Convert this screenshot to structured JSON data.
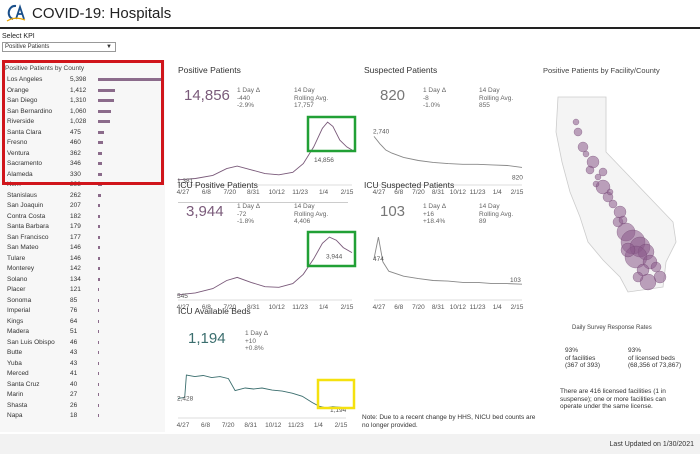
{
  "header": {
    "title": "COVID-19: Hospitals"
  },
  "kpi": {
    "label": "Select KPI",
    "selected": "Positive Patients"
  },
  "county_panel": {
    "title": "Positive Patients by County",
    "rows": [
      {
        "name": "Los Angeles",
        "value": "5,398",
        "num": 5398
      },
      {
        "name": "Orange",
        "value": "1,412",
        "num": 1412
      },
      {
        "name": "San Diego",
        "value": "1,310",
        "num": 1310
      },
      {
        "name": "San Bernardino",
        "value": "1,060",
        "num": 1060
      },
      {
        "name": "Riverside",
        "value": "1,028",
        "num": 1028
      },
      {
        "name": "Santa Clara",
        "value": "475",
        "num": 475
      },
      {
        "name": "Fresno",
        "value": "460",
        "num": 460
      },
      {
        "name": "Ventura",
        "value": "362",
        "num": 362
      },
      {
        "name": "Sacramento",
        "value": "346",
        "num": 346
      },
      {
        "name": "Alameda",
        "value": "330",
        "num": 330
      },
      {
        "name": "Kern",
        "value": "298",
        "num": 298
      },
      {
        "name": "Stanislaus",
        "value": "262",
        "num": 262
      },
      {
        "name": "San Joaquin",
        "value": "207",
        "num": 207
      },
      {
        "name": "Contra Costa",
        "value": "182",
        "num": 182
      },
      {
        "name": "Santa Barbara",
        "value": "179",
        "num": 179
      },
      {
        "name": "San Francisco",
        "value": "177",
        "num": 177
      },
      {
        "name": "San Mateo",
        "value": "146",
        "num": 146
      },
      {
        "name": "Tulare",
        "value": "146",
        "num": 146
      },
      {
        "name": "Monterey",
        "value": "142",
        "num": 142
      },
      {
        "name": "Solano",
        "value": "134",
        "num": 134
      },
      {
        "name": "Placer",
        "value": "121",
        "num": 121
      },
      {
        "name": "Sonoma",
        "value": "85",
        "num": 85
      },
      {
        "name": "Imperial",
        "value": "76",
        "num": 76
      },
      {
        "name": "Kings",
        "value": "64",
        "num": 64
      },
      {
        "name": "Madera",
        "value": "51",
        "num": 51
      },
      {
        "name": "San Luis Obispo",
        "value": "46",
        "num": 46
      },
      {
        "name": "Butte",
        "value": "43",
        "num": 43
      },
      {
        "name": "Yuba",
        "value": "43",
        "num": 43
      },
      {
        "name": "Merced",
        "value": "41",
        "num": 41
      },
      {
        "name": "Santa Cruz",
        "value": "40",
        "num": 40
      },
      {
        "name": "Marin",
        "value": "27",
        "num": 27
      },
      {
        "name": "Shasta",
        "value": "26",
        "num": 26
      },
      {
        "name": "Napa",
        "value": "18",
        "num": 18
      }
    ]
  },
  "x_ticks": [
    "4/27",
    "6/8",
    "7/20",
    "8/31",
    "10/12",
    "11/23",
    "1/4",
    "2/15"
  ],
  "positive": {
    "title": "Positive Patients",
    "value": "14,856",
    "delta_label": "1 Day Δ",
    "delta": "-440",
    "delta_pct": "-2.9%",
    "rolling_label1": "14 Day",
    "rolling_label2": "Rolling Avg.",
    "rolling": "17,757",
    "start_label": "1,381",
    "end_label": "14,856"
  },
  "suspected": {
    "title": "Suspected Patients",
    "value": "820",
    "delta_label": "1 Day Δ",
    "delta": "-8",
    "delta_pct": "-1.0%",
    "rolling_label1": "14 Day",
    "rolling_label2": "Rolling Avg.",
    "rolling": "855",
    "start_label": "2,740",
    "end_label": "820"
  },
  "icu_positive": {
    "title": "ICU Positive Patients",
    "value": "3,944",
    "delta_label": "1 Day Δ",
    "delta": "-72",
    "delta_pct": "-1.8%",
    "rolling_label1": "14 Day",
    "rolling_label2": "Rolling Avg.",
    "rolling": "4,406",
    "start_label": "545",
    "end_label": "3,944"
  },
  "icu_suspected": {
    "title": "ICU Suspected Patients",
    "value": "103",
    "delta_label": "1 Day Δ",
    "delta": "+16",
    "delta_pct": "+18.4%",
    "rolling_label1": "14 Day",
    "rolling_label2": "Rolling Avg.",
    "rolling": "89",
    "start_label": "474",
    "end_label": "103"
  },
  "icu_beds": {
    "title": "ICU Available Beds",
    "value": "1,194",
    "delta_label": "1 Day Δ",
    "delta": "+10",
    "delta_pct": "+0.8%",
    "start_label": "2,428",
    "end_label": "1,194"
  },
  "facility": {
    "title": "Positive Patients by Facility/County"
  },
  "survey": {
    "title": "Daily Survey Response Rates",
    "facilities_pct": "93%",
    "facilities_label": "of facilities",
    "facilities_detail": "(367 of 393)",
    "beds_pct": "93%",
    "beds_label": "of licensed beds",
    "beds_detail": "(68,356 of 73,867)"
  },
  "licensed_note": "There are 416 licensed facilities (1 in suspense); one or more facilities can operate under the same license.",
  "nicu_note": "Note: Due to a recent change by HHS, NICU bed counts are no longer provided.",
  "footer": {
    "last_updated": "Last Updated on 1/30/2021"
  },
  "colors": {
    "purple": "#7a5a7a",
    "gray": "#777777",
    "teal": "#3b6e6e",
    "red_highlight": "#d0151b",
    "green_highlight": "#21a035",
    "yellow_highlight": "#f5e10f"
  }
}
